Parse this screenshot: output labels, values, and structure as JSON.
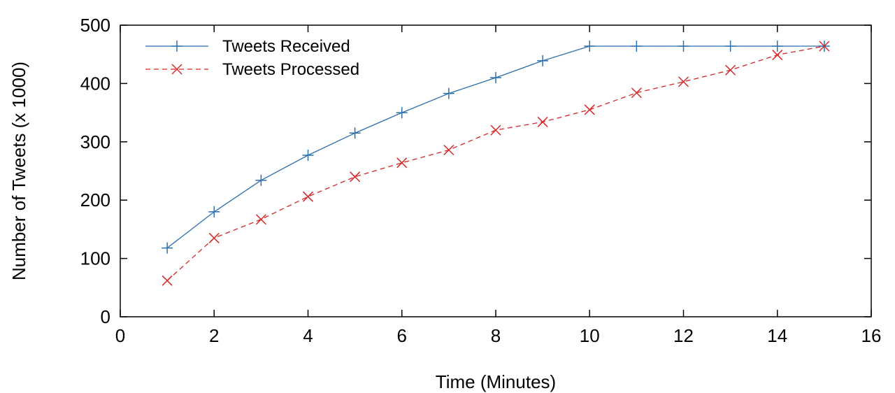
{
  "chart_data": {
    "type": "line",
    "title": "",
    "xlabel": "Time (Minutes)",
    "ylabel": "Number of Tweets (x 1000)",
    "xlim": [
      0,
      16
    ],
    "ylim": [
      0,
      500
    ],
    "xticks": [
      "0",
      "2",
      "4",
      "6",
      "8",
      "10",
      "12",
      "14",
      "16"
    ],
    "yticks": [
      "0",
      "100",
      "200",
      "300",
      "400",
      "500"
    ],
    "grid": false,
    "legend_position": "top-left",
    "series": [
      {
        "name": "Tweets Received",
        "color": "#2c6fad",
        "marker": "plus",
        "line_style": "solid",
        "x": [
          1,
          2,
          3,
          4,
          5,
          6,
          7,
          8,
          9,
          10,
          11,
          12,
          13,
          14,
          15
        ],
        "values": [
          118,
          180,
          234,
          277,
          315,
          350,
          383,
          410,
          439,
          464,
          464,
          464,
          464,
          464,
          464
        ]
      },
      {
        "name": "Tweets Processed",
        "color": "#d62728",
        "marker": "x",
        "line_style": "dashed",
        "x": [
          1,
          2,
          3,
          4,
          5,
          6,
          7,
          8,
          9,
          10,
          11,
          12,
          13,
          14,
          15
        ],
        "values": [
          62,
          135,
          167,
          206,
          240,
          264,
          286,
          320,
          334,
          355,
          384,
          403,
          423,
          449,
          464
        ]
      }
    ]
  }
}
